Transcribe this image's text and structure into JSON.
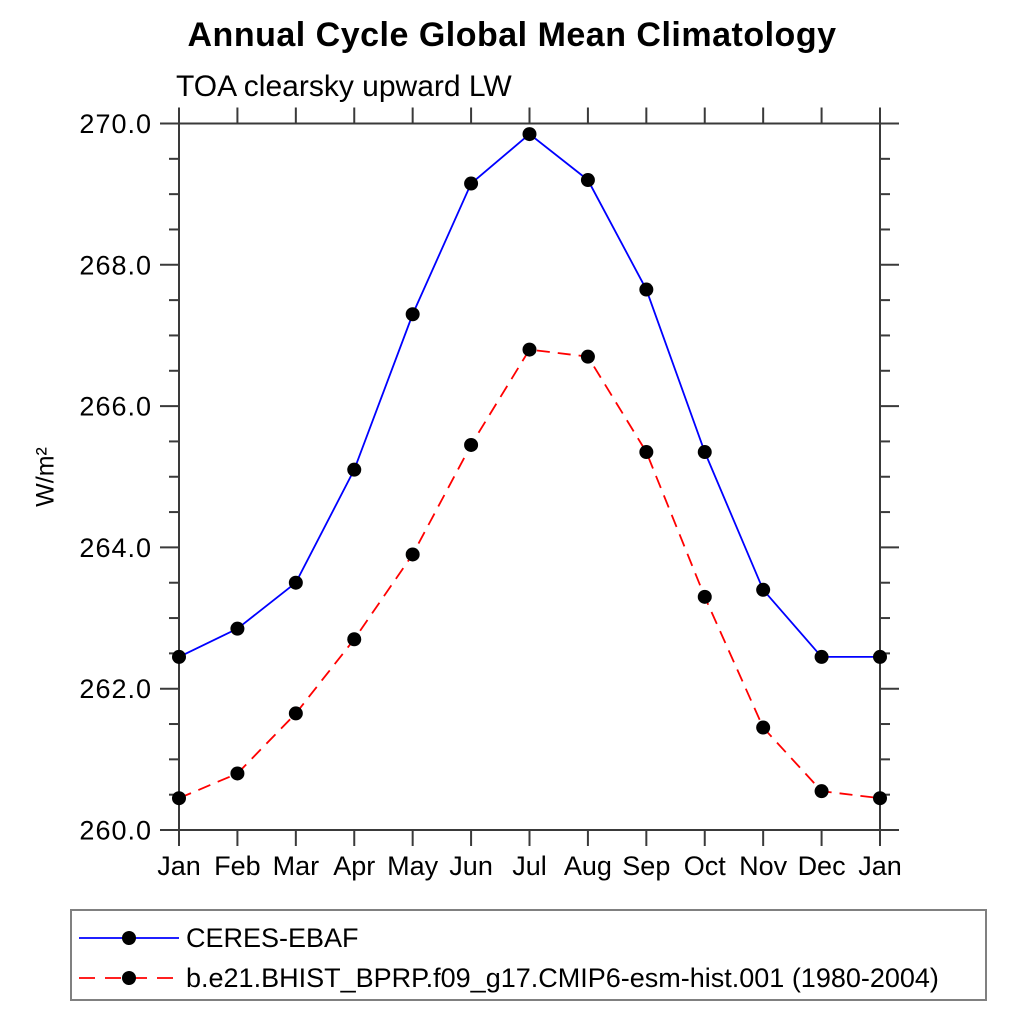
{
  "title": "Annual Cycle Global Mean Climatology",
  "subtitle": "TOA clearsky upward LW",
  "ylabel": "W/m²",
  "colors": {
    "ceres_line": "#0000ff",
    "model_line": "#ff0000",
    "marker": "#000000",
    "axis": "#3a3a3a",
    "legend_border": "#808080"
  },
  "legend": {
    "position": "bottom",
    "entries": [
      {
        "label": "CERES-EBAF",
        "line_style": "solid",
        "color": "#0000ff"
      },
      {
        "label": "b.e21.BHIST_BPRP.f09_g17.CMIP6-esm-hist.001 (1980-2004)",
        "line_style": "dashed",
        "color": "#ff0000"
      }
    ]
  },
  "chart_data": {
    "type": "line",
    "title": "Annual Cycle Global Mean Climatology",
    "subtitle": "TOA clearsky upward LW",
    "xlabel": "",
    "ylabel": "W/m²",
    "categories": [
      "Jan",
      "Feb",
      "Mar",
      "Apr",
      "May",
      "Jun",
      "Jul",
      "Aug",
      "Sep",
      "Oct",
      "Nov",
      "Dec",
      "Jan"
    ],
    "ylim": [
      260.0,
      270.0
    ],
    "ytick_major": [
      260.0,
      262.0,
      264.0,
      266.0,
      268.0,
      270.0
    ],
    "ytick_labels": [
      "260.0",
      "262.0",
      "264.0",
      "266.0",
      "268.0",
      "270.0"
    ],
    "ytick_minor_step": 0.5,
    "grid": false,
    "legend_position": "bottom",
    "series": [
      {
        "name": "CERES-EBAF",
        "color": "#0000ff",
        "line_style": "solid",
        "marker": "filled-circle",
        "marker_color": "#000000",
        "values": [
          262.45,
          262.85,
          263.5,
          265.1,
          267.3,
          269.15,
          269.85,
          269.2,
          267.65,
          265.35,
          263.4,
          262.45,
          262.45
        ]
      },
      {
        "name": "b.e21.BHIST_BPRP.f09_g17.CMIP6-esm-hist.001 (1980-2004)",
        "color": "#ff0000",
        "line_style": "dashed",
        "marker": "filled-circle",
        "marker_color": "#000000",
        "values": [
          260.45,
          260.8,
          261.65,
          262.7,
          263.9,
          265.45,
          266.8,
          266.7,
          265.35,
          263.3,
          261.45,
          260.55,
          260.45
        ]
      }
    ]
  }
}
